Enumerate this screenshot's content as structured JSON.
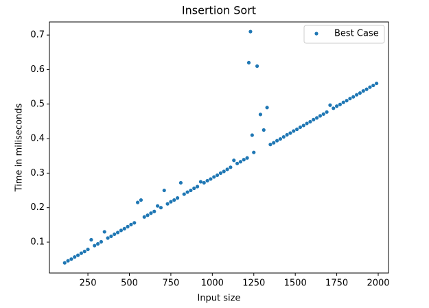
{
  "chart_data": {
    "type": "scatter",
    "title": "Insertion Sort",
    "x_label": "Input size",
    "y_label": "Time in miliseconds",
    "xlim": [
      18,
      2062
    ],
    "ylim": [
      0.0106,
      0.738
    ],
    "xticks": [
      250,
      500,
      750,
      1000,
      1250,
      1500,
      1750,
      2000
    ],
    "yticks": [
      0.1,
      0.2,
      0.3,
      0.4,
      0.5,
      0.6,
      0.7
    ],
    "legend": "upper right",
    "series": [
      {
        "name": "Best Case",
        "color": "#1f77b4",
        "x": [
          110,
          130,
          150,
          170,
          190,
          210,
          230,
          250,
          270,
          290,
          310,
          330,
          350,
          370,
          390,
          410,
          430,
          450,
          470,
          490,
          510,
          530,
          550,
          570,
          590,
          610,
          630,
          650,
          670,
          690,
          710,
          730,
          750,
          770,
          790,
          810,
          830,
          850,
          870,
          890,
          910,
          930,
          950,
          970,
          990,
          1010,
          1030,
          1050,
          1070,
          1090,
          1110,
          1130,
          1150,
          1170,
          1190,
          1210,
          1220,
          1230,
          1240,
          1250,
          1270,
          1290,
          1310,
          1330,
          1350,
          1370,
          1390,
          1410,
          1430,
          1450,
          1470,
          1490,
          1510,
          1530,
          1550,
          1570,
          1590,
          1610,
          1630,
          1650,
          1670,
          1690,
          1710,
          1730,
          1750,
          1770,
          1790,
          1810,
          1830,
          1850,
          1870,
          1890,
          1910,
          1930,
          1950,
          1970,
          1990
        ],
        "values": [
          0.04,
          0.046,
          0.051,
          0.057,
          0.062,
          0.068,
          0.073,
          0.079,
          0.107,
          0.09,
          0.095,
          0.101,
          0.13,
          0.112,
          0.117,
          0.123,
          0.128,
          0.134,
          0.139,
          0.145,
          0.151,
          0.156,
          0.215,
          0.222,
          0.173,
          0.178,
          0.184,
          0.189,
          0.205,
          0.2,
          0.25,
          0.211,
          0.217,
          0.222,
          0.228,
          0.272,
          0.239,
          0.245,
          0.25,
          0.256,
          0.261,
          0.275,
          0.272,
          0.278,
          0.283,
          0.289,
          0.294,
          0.3,
          0.305,
          0.311,
          0.317,
          0.337,
          0.328,
          0.333,
          0.339,
          0.344,
          0.62,
          0.71,
          0.41,
          0.36,
          0.61,
          0.47,
          0.425,
          0.49,
          0.383,
          0.388,
          0.394,
          0.399,
          0.405,
          0.411,
          0.416,
          0.422,
          0.427,
          0.433,
          0.438,
          0.444,
          0.449,
          0.455,
          0.46,
          0.466,
          0.471,
          0.477,
          0.497,
          0.488,
          0.494,
          0.499,
          0.505,
          0.51,
          0.516,
          0.521,
          0.527,
          0.532,
          0.538,
          0.543,
          0.549,
          0.554,
          0.56
        ]
      }
    ]
  }
}
